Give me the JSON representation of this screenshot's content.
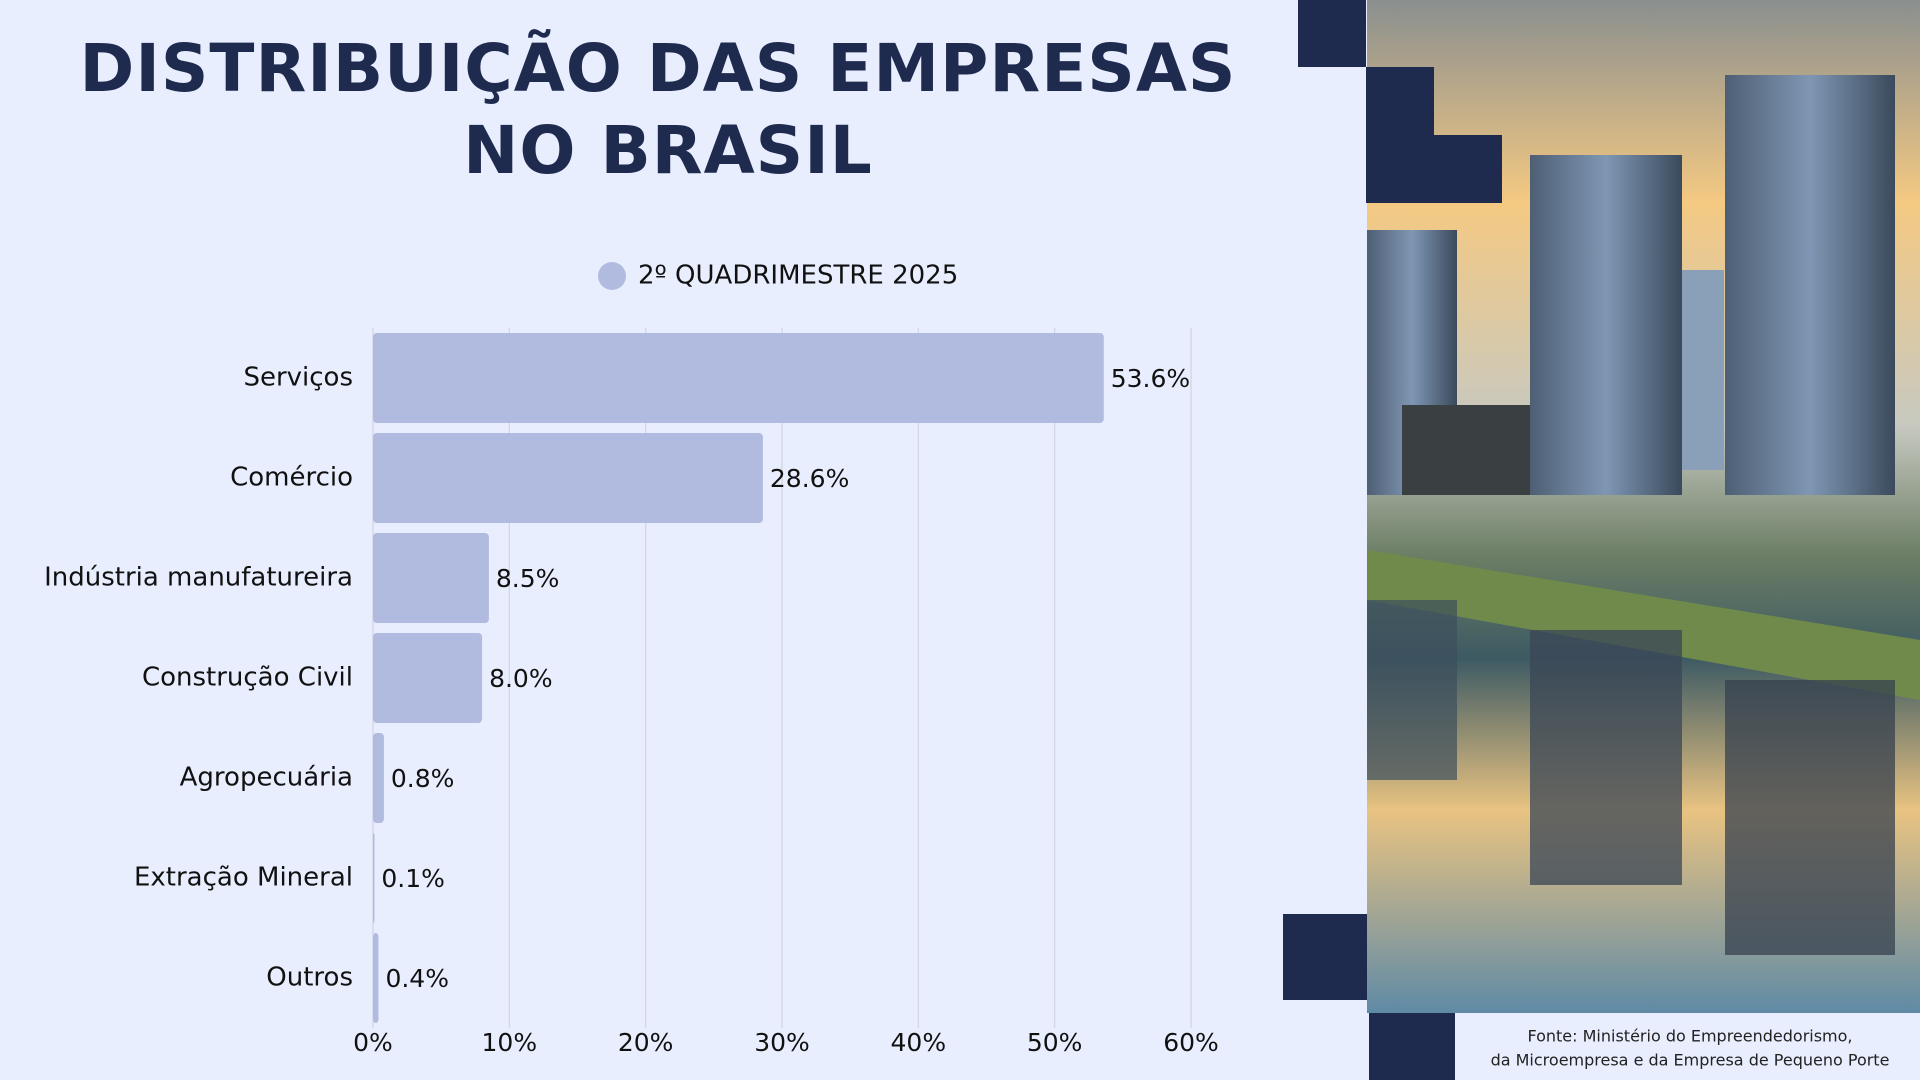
{
  "chart_data": {
    "type": "hbar",
    "title": [
      "DISTRIBUIÇÃO DAS EMPRESAS",
      "NO BRASIL"
    ],
    "categories": [
      "Serviços",
      "Comércio",
      "Indústria manufatureira",
      "Construção Civil",
      "Agropecuária",
      "Extração Mineral",
      "Outros"
    ],
    "series": [
      {
        "name": "2º QUADRIMESTRE 2025",
        "color": "#b1badf",
        "values": [
          53.6,
          28.6,
          8.5,
          8.0,
          0.8,
          0.1,
          0.4
        ],
        "value_labels": [
          "53.6%",
          "28.6%",
          "8.5%",
          "8.0%",
          "0.8%",
          "0.1%",
          "0.4%"
        ]
      }
    ],
    "xlim": [
      0,
      60
    ],
    "xticks": [
      {
        "value": 0,
        "label": "0%"
      },
      {
        "value": 10,
        "label": "10%"
      },
      {
        "value": 20,
        "label": "20%"
      },
      {
        "value": 30,
        "label": "30%"
      },
      {
        "value": 40,
        "label": "40%"
      },
      {
        "value": 50,
        "label": "50%"
      },
      {
        "value": 60,
        "label": "60%"
      }
    ],
    "grid": true,
    "legend": "top",
    "source": [
      "Fonte: Ministério do Empreendedorismo,",
      "da Microempresa e da Empresa de Pequeno Porte"
    ]
  }
}
